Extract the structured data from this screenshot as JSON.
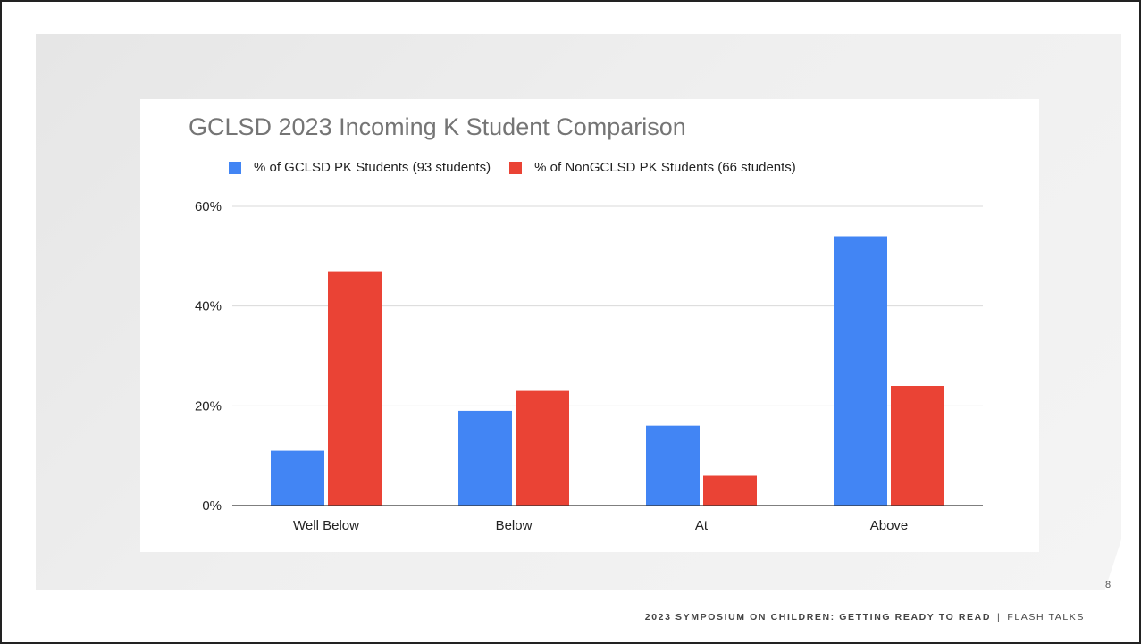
{
  "slide": {
    "page_number": "8",
    "footer_main": "2023 SYMPOSIUM ON CHILDREN: GETTING READY TO READ",
    "footer_separator": "|",
    "footer_secondary": "FLASH TALKS"
  },
  "chart_data": {
    "type": "bar",
    "title": "GCLSD 2023 Incoming K Student Comparison",
    "categories": [
      "Well Below",
      "Below",
      "At",
      "Above"
    ],
    "series": [
      {
        "name": "% of GCLSD PK Students (93 students)",
        "color": "#4285f4",
        "values": [
          11,
          19,
          16,
          54
        ]
      },
      {
        "name": "% of NonGCLSD PK Students  (66 students)",
        "color": "#ea4335",
        "values": [
          47,
          23,
          6,
          24
        ]
      }
    ],
    "y_ticks": [
      "0%",
      "20%",
      "40%",
      "60%"
    ],
    "ylim": [
      0,
      60
    ],
    "xlabel": "",
    "ylabel": "",
    "grid": true,
    "legend_position": "top"
  }
}
